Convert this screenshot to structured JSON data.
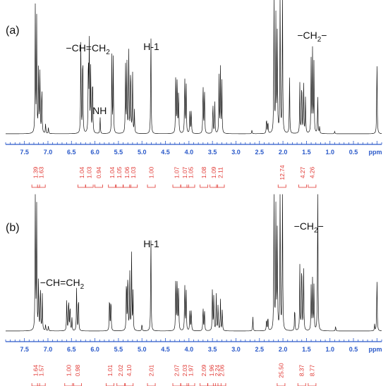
{
  "axis_unit": "ppm",
  "chart_data": [
    {
      "type": "line",
      "panel_label": "(a)",
      "x_unit": "ppm",
      "xlim": [
        7.9,
        -0.1
      ],
      "x_ticks": [
        7.5,
        7.0,
        6.5,
        6.0,
        5.5,
        5.0,
        4.5,
        4.0,
        3.5,
        3.0,
        2.5,
        2.0,
        1.5,
        1.0,
        0.5
      ],
      "annotations": [
        {
          "label": "−CH=CH2",
          "main": "−CH=CH",
          "sub": "2",
          "ppm": 6.15
        },
        {
          "label": "NH",
          "main": "NH",
          "ppm": 5.9
        },
        {
          "label": "H-1",
          "main": "H-1",
          "ppm": 4.8
        },
        {
          "label": "−CH2−",
          "main": "−CH",
          "sub": "2",
          "tail": "−",
          "ppm": 1.38
        }
      ],
      "peaks": [
        {
          "ppm": 7.27,
          "h": 0.97
        },
        {
          "ppm": 7.24,
          "h": 0.88
        },
        {
          "ppm": 7.2,
          "h": 0.55
        },
        {
          "ppm": 7.17,
          "h": 0.52
        },
        {
          "ppm": 7.13,
          "h": 0.4
        },
        {
          "ppm": 7.05,
          "h": 0.08
        },
        {
          "ppm": 6.99,
          "h": 0.05
        },
        {
          "ppm": 6.3,
          "h": 0.74
        },
        {
          "ppm": 6.26,
          "h": 0.72
        },
        {
          "ppm": 6.14,
          "h": 0.66
        },
        {
          "ppm": 6.12,
          "h": 0.72
        },
        {
          "ppm": 6.09,
          "h": 0.52
        },
        {
          "ppm": 6.05,
          "h": 0.5
        },
        {
          "ppm": 5.89,
          "h": 0.13
        },
        {
          "ppm": 5.64,
          "h": 0.62
        },
        {
          "ppm": 5.61,
          "h": 0.6
        },
        {
          "ppm": 5.35,
          "h": 0.56
        },
        {
          "ppm": 5.32,
          "h": 0.58
        },
        {
          "ppm": 5.28,
          "h": 0.64
        },
        {
          "ppm": 5.24,
          "h": 0.58
        },
        {
          "ppm": 5.2,
          "h": 0.5
        },
        {
          "ppm": 5.16,
          "h": 0.18
        },
        {
          "ppm": 4.81,
          "h": 0.82
        },
        {
          "ppm": 4.28,
          "h": 0.52
        },
        {
          "ppm": 4.25,
          "h": 0.48
        },
        {
          "ppm": 4.22,
          "h": 0.36
        },
        {
          "ppm": 4.09,
          "h": 0.48
        },
        {
          "ppm": 4.06,
          "h": 0.44
        },
        {
          "ppm": 3.98,
          "h": 0.2
        },
        {
          "ppm": 3.95,
          "h": 0.2
        },
        {
          "ppm": 3.7,
          "h": 0.42
        },
        {
          "ppm": 3.67,
          "h": 0.38
        },
        {
          "ppm": 3.49,
          "h": 0.26
        },
        {
          "ppm": 3.45,
          "h": 0.24
        },
        {
          "ppm": 3.36,
          "h": 0.44
        },
        {
          "ppm": 3.33,
          "h": 0.5
        },
        {
          "ppm": 3.3,
          "h": 0.4
        },
        {
          "ppm": 2.66,
          "h": 0.03
        },
        {
          "ppm": 2.35,
          "h": 0.13
        },
        {
          "ppm": 2.32,
          "h": 0.1
        },
        {
          "ppm": 2.19,
          "h": 1.2
        },
        {
          "ppm": 2.15,
          "h": 0.95
        },
        {
          "ppm": 2.12,
          "h": 0.8
        },
        {
          "ppm": 2.06,
          "h": 1.2
        },
        {
          "ppm": 2.01,
          "h": 1.2
        },
        {
          "ppm": 1.86,
          "h": 0.45
        },
        {
          "ppm": 1.64,
          "h": 0.4
        },
        {
          "ppm": 1.6,
          "h": 0.45
        },
        {
          "ppm": 1.56,
          "h": 0.4
        },
        {
          "ppm": 1.52,
          "h": 0.28
        },
        {
          "ppm": 1.4,
          "h": 0.58
        },
        {
          "ppm": 1.37,
          "h": 0.65
        },
        {
          "ppm": 1.34,
          "h": 0.55
        },
        {
          "ppm": 1.26,
          "h": 0.3
        },
        {
          "ppm": 1.22,
          "h": 0.05
        },
        {
          "ppm": 0.9,
          "h": 0.02
        },
        {
          "ppm": 0.0,
          "h": 0.62
        }
      ],
      "integrals": [
        {
          "ppm": 7.26,
          "value": "1.39"
        },
        {
          "ppm": 7.14,
          "value": "1.63"
        },
        {
          "ppm": 6.28,
          "value": "1.04"
        },
        {
          "ppm": 6.12,
          "value": "1.03"
        },
        {
          "ppm": 5.92,
          "value": "0.94"
        },
        {
          "ppm": 5.63,
          "value": "1.04"
        },
        {
          "ppm": 5.48,
          "value": "1.05"
        },
        {
          "ppm": 5.32,
          "value": "1.06"
        },
        {
          "ppm": 5.18,
          "value": "1.03"
        },
        {
          "ppm": 4.8,
          "value": "1.00"
        },
        {
          "ppm": 4.26,
          "value": "1.07"
        },
        {
          "ppm": 4.09,
          "value": "1.07"
        },
        {
          "ppm": 3.96,
          "value": "1.05"
        },
        {
          "ppm": 3.68,
          "value": "1.08"
        },
        {
          "ppm": 3.47,
          "value": "1.09"
        },
        {
          "ppm": 3.33,
          "value": "2.11"
        },
        {
          "ppm": 2.02,
          "value": "12.74"
        },
        {
          "ppm": 1.58,
          "value": "4.27"
        },
        {
          "ppm": 1.38,
          "value": "4.26"
        }
      ]
    },
    {
      "type": "line",
      "panel_label": "(b)",
      "x_unit": "ppm",
      "xlim": [
        7.9,
        -0.1
      ],
      "x_ticks": [
        7.5,
        7.0,
        6.5,
        6.0,
        5.5,
        5.0,
        4.5,
        4.0,
        3.5,
        3.0,
        2.5,
        2.0,
        1.5,
        1.0,
        0.5
      ],
      "annotations": [
        {
          "label": "−CH=CH2",
          "main": "−CH=CH",
          "sub": "2",
          "ppm": 6.7
        },
        {
          "label": "H-1",
          "main": "H-1",
          "ppm": 4.8
        },
        {
          "label": "−CH2−",
          "main": "−CH",
          "sub": "2",
          "tail": "−",
          "ppm": 1.45
        }
      ],
      "peaks": [
        {
          "ppm": 7.27,
          "h": 1.1
        },
        {
          "ppm": 7.24,
          "h": 0.95
        },
        {
          "ppm": 7.2,
          "h": 0.42
        },
        {
          "ppm": 7.16,
          "h": 0.38
        },
        {
          "ppm": 7.12,
          "h": 0.28
        },
        {
          "ppm": 7.05,
          "h": 0.05
        },
        {
          "ppm": 6.99,
          "h": 0.04
        },
        {
          "ppm": 6.6,
          "h": 0.25
        },
        {
          "ppm": 6.56,
          "h": 0.28
        },
        {
          "ppm": 6.53,
          "h": 0.22
        },
        {
          "ppm": 6.49,
          "h": 0.1
        },
        {
          "ppm": 6.39,
          "h": 0.35
        },
        {
          "ppm": 6.35,
          "h": 0.3
        },
        {
          "ppm": 5.69,
          "h": 0.3
        },
        {
          "ppm": 5.66,
          "h": 0.28
        },
        {
          "ppm": 5.33,
          "h": 0.45
        },
        {
          "ppm": 5.3,
          "h": 0.5
        },
        {
          "ppm": 5.26,
          "h": 0.48
        },
        {
          "ppm": 5.22,
          "h": 0.6
        },
        {
          "ppm": 5.19,
          "h": 0.3
        },
        {
          "ppm": 5.0,
          "h": 0.06
        },
        {
          "ppm": 4.81,
          "h": 0.78
        },
        {
          "ppm": 4.28,
          "h": 0.46
        },
        {
          "ppm": 4.25,
          "h": 0.44
        },
        {
          "ppm": 4.22,
          "h": 0.38
        },
        {
          "ppm": 4.09,
          "h": 0.4
        },
        {
          "ppm": 4.06,
          "h": 0.36
        },
        {
          "ppm": 3.98,
          "h": 0.18
        },
        {
          "ppm": 3.95,
          "h": 0.18
        },
        {
          "ppm": 3.7,
          "h": 0.2
        },
        {
          "ppm": 3.67,
          "h": 0.18
        },
        {
          "ppm": 3.5,
          "h": 0.36
        },
        {
          "ppm": 3.47,
          "h": 0.3
        },
        {
          "ppm": 3.42,
          "h": 0.28
        },
        {
          "ppm": 3.38,
          "h": 0.22
        },
        {
          "ppm": 3.33,
          "h": 0.24
        },
        {
          "ppm": 3.29,
          "h": 0.18
        },
        {
          "ppm": 2.64,
          "h": 0.11
        },
        {
          "ppm": 2.35,
          "h": 0.1
        },
        {
          "ppm": 2.32,
          "h": 0.12
        },
        {
          "ppm": 2.19,
          "h": 1.2
        },
        {
          "ppm": 2.15,
          "h": 1.0
        },
        {
          "ppm": 2.12,
          "h": 0.8
        },
        {
          "ppm": 2.06,
          "h": 1.2
        },
        {
          "ppm": 2.01,
          "h": 1.2
        },
        {
          "ppm": 1.75,
          "h": 0.2
        },
        {
          "ppm": 1.64,
          "h": 0.52
        },
        {
          "ppm": 1.6,
          "h": 0.6
        },
        {
          "ppm": 1.56,
          "h": 0.5
        },
        {
          "ppm": 1.4,
          "h": 0.35
        },
        {
          "ppm": 1.37,
          "h": 0.4
        },
        {
          "ppm": 1.34,
          "h": 0.35
        },
        {
          "ppm": 1.26,
          "h": 1.2
        },
        {
          "ppm": 0.88,
          "h": 0.04
        },
        {
          "ppm": 0.05,
          "h": 0.05
        },
        {
          "ppm": 0.0,
          "h": 0.45
        }
      ],
      "integrals": [
        {
          "ppm": 7.26,
          "value": "1.64"
        },
        {
          "ppm": 7.14,
          "value": "1.57"
        },
        {
          "ppm": 6.56,
          "value": "1.00"
        },
        {
          "ppm": 6.37,
          "value": "0.98"
        },
        {
          "ppm": 5.68,
          "value": "1.01"
        },
        {
          "ppm": 5.45,
          "value": "2.02"
        },
        {
          "ppm": 5.27,
          "value": "4.10"
        },
        {
          "ppm": 4.8,
          "value": "2.01"
        },
        {
          "ppm": 4.26,
          "value": "2.07"
        },
        {
          "ppm": 4.09,
          "value": "2.03"
        },
        {
          "ppm": 3.96,
          "value": "1.97"
        },
        {
          "ppm": 3.68,
          "value": "2.09"
        },
        {
          "ppm": 3.52,
          "value": "1.96"
        },
        {
          "ppm": 3.4,
          "value": "2.24"
        },
        {
          "ppm": 3.3,
          "value": "2.06"
        },
        {
          "ppm": 2.04,
          "value": "25.50"
        },
        {
          "ppm": 1.6,
          "value": "8.37"
        },
        {
          "ppm": 1.38,
          "value": "8.77"
        }
      ]
    }
  ]
}
